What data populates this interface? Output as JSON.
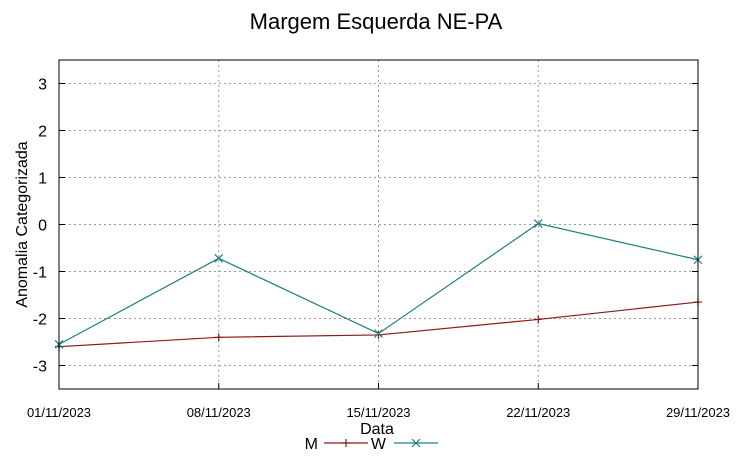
{
  "chart_data": {
    "type": "line",
    "title": "Margem Esquerda NE-PA",
    "xlabel": "Data",
    "ylabel": "Anomalia Categorizada",
    "categories": [
      "01/11/2023",
      "08/11/2023",
      "15/11/2023",
      "22/11/2023",
      "29/11/2023"
    ],
    "yticks": [
      "-3",
      "-2",
      "-1",
      "0",
      "1",
      "2",
      "3"
    ],
    "ylim": [
      -3.5,
      3.5
    ],
    "grid": true,
    "legend_position": "bottom",
    "series": [
      {
        "name": "M",
        "color": "#8b1a1a",
        "marker": "plus",
        "values": [
          -2.6,
          -2.4,
          -2.35,
          -2.02,
          -1.65
        ]
      },
      {
        "name": "W",
        "color": "#1f7f7f",
        "marker": "cross",
        "values": [
          -2.55,
          -0.72,
          -2.32,
          0.02,
          -0.75
        ]
      }
    ]
  }
}
